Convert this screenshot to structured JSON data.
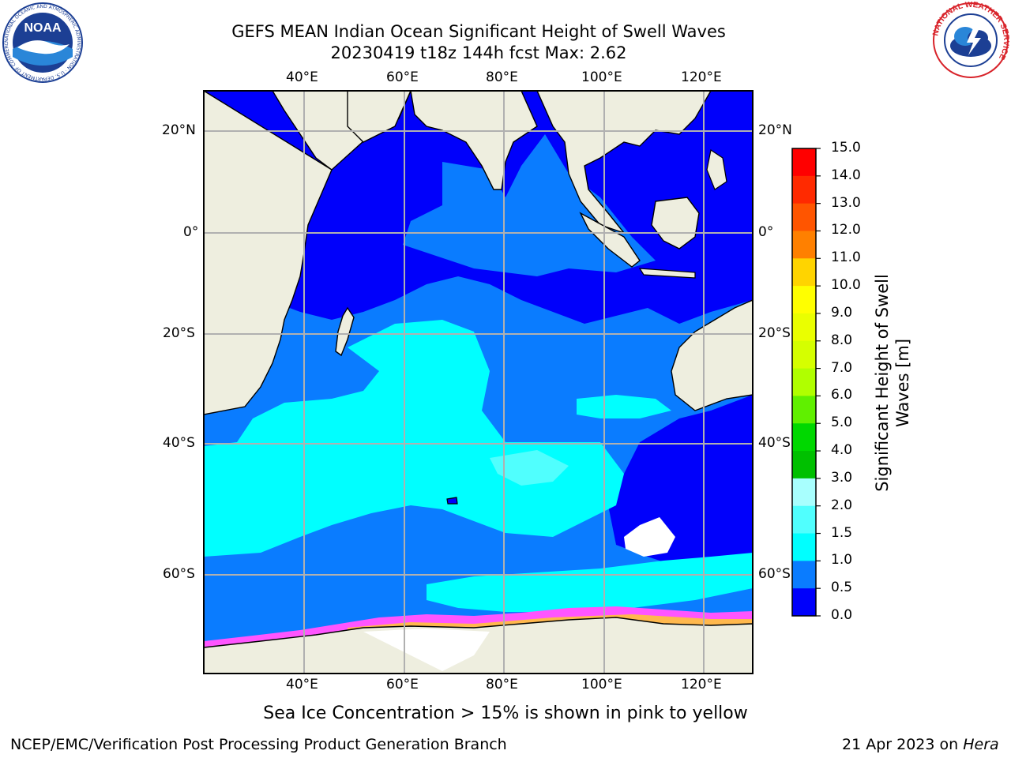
{
  "header": {
    "title_line1": "GEFS MEAN Indian Ocean Significant Height of Swell Waves",
    "title_line2": "20230419 t18z 144h fcst   Max: 2.62"
  },
  "logos": {
    "left": "NOAA",
    "left_ring": "NATIONAL OCEANIC AND ATMOSPHERIC ADMINISTRATION · U.S. DEPARTMENT OF COMMERCE",
    "right_ring": "NATIONAL WEATHER SERVICE"
  },
  "map": {
    "lon_labels_top": [
      "40°E",
      "60°E",
      "80°E",
      "100°E",
      "120°E"
    ],
    "lon_labels_bottom": [
      "40°E",
      "60°E",
      "80°E",
      "100°E",
      "120°E"
    ],
    "lat_labels_left": [
      "20°N",
      "0°",
      "20°S",
      "40°S",
      "60°S"
    ],
    "lat_labels_right": [
      "20°N",
      "0°",
      "20°S",
      "40°S",
      "60°S"
    ],
    "colors": {
      "land": "#eeeedf",
      "ocean_deep": "#0000fb",
      "ocean_mid": "#0a7cff",
      "swell_cyan": "#00ffff",
      "swell_light": "#50fffe",
      "grid": "#b0b0b0",
      "ice_pink": "#ff55ff",
      "ice_orange": "#ffb84d"
    }
  },
  "colorbar": {
    "title_line1": "Significant Height of Swell",
    "title_line2": "Waves [m]",
    "ticks": [
      "15.0",
      "14.0",
      "13.0",
      "12.0",
      "11.0",
      "10.0",
      "9.0",
      "8.0",
      "7.0",
      "6.0",
      "5.0",
      "4.0",
      "3.0",
      "2.0",
      "1.5",
      "1.0",
      "0.5",
      "0.0"
    ],
    "colors": [
      "#ff0000",
      "#ff2a00",
      "#ff5500",
      "#ff8000",
      "#ffaa00",
      "#ffd400",
      "#ffff00",
      "#eaff00",
      "#d5ff00",
      "#b0ff00",
      "#60f000",
      "#00d800",
      "#00c000",
      "#50f87a",
      "#a8fffe",
      "#50fffe",
      "#00ffff",
      "#0a7cff",
      "#0000fb"
    ]
  },
  "footer": {
    "sea_ice_note": "Sea Ice Concentration > 15% is shown in pink to yellow",
    "left": "NCEP/EMC/Verification Post Processing Product Generation Branch",
    "right_date": "21 Apr 2023 on ",
    "right_host": "Hera"
  }
}
